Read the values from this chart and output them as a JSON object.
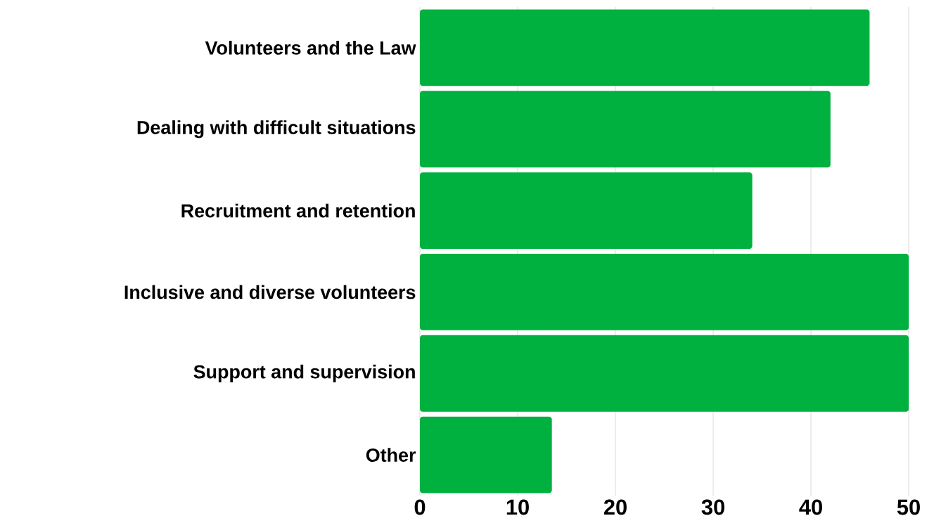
{
  "chart_data": {
    "type": "bar",
    "orientation": "horizontal",
    "categories": [
      "Volunteers and the Law",
      "Dealing with difficult situations",
      "Recruitment and retention",
      "Inclusive and diverse volunteers",
      "Support and supervision",
      "Other"
    ],
    "values": [
      46,
      42,
      34,
      50,
      50,
      13.5
    ],
    "color": "#00b140",
    "xlim": [
      0,
      50
    ],
    "xticks": [
      0,
      10,
      20,
      30,
      40,
      50
    ],
    "grid": "x"
  }
}
